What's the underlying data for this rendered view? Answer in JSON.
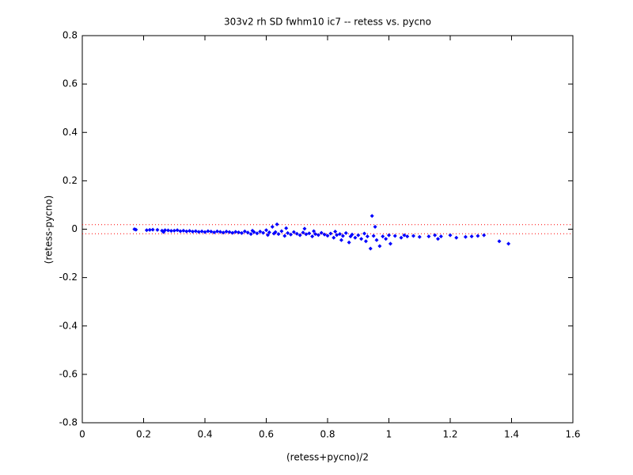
{
  "chart_data": {
    "type": "scatter",
    "title": "303v2 rh SD fwhm10 ic7 -- retess vs. pycno",
    "x_label": "(retess+pycno)/2",
    "y_label": "(retess-pycno)",
    "xlim": [
      0,
      1.6
    ],
    "xticks": [
      0,
      0.2,
      0.4,
      0.6,
      0.8,
      1,
      1.2,
      1.4,
      1.6
    ],
    "ylim": [
      -0.8,
      0.8
    ],
    "yticks": [
      -0.8,
      -0.6,
      -0.4,
      -0.2,
      0,
      0.2,
      0.4,
      0.6,
      0.8
    ],
    "grid": false,
    "reference_lines": [
      {
        "value": 0.019,
        "color": "#ff0000"
      },
      {
        "value": -0.019,
        "color": "#ff0000"
      }
    ],
    "series": [
      {
        "color": "#0000ff",
        "x": [
          0.17,
          0.175,
          0.21,
          0.22,
          0.23,
          0.245,
          0.26,
          0.265,
          0.27,
          0.28,
          0.29,
          0.3,
          0.31,
          0.32,
          0.33,
          0.34,
          0.35,
          0.36,
          0.37,
          0.38,
          0.39,
          0.4,
          0.41,
          0.42,
          0.43,
          0.44,
          0.45,
          0.46,
          0.47,
          0.48,
          0.49,
          0.5,
          0.51,
          0.52,
          0.53,
          0.54,
          0.55,
          0.555,
          0.56,
          0.57,
          0.58,
          0.59,
          0.6,
          0.605,
          0.61,
          0.62,
          0.625,
          0.63,
          0.635,
          0.64,
          0.65,
          0.66,
          0.665,
          0.67,
          0.68,
          0.69,
          0.7,
          0.71,
          0.72,
          0.725,
          0.73,
          0.74,
          0.75,
          0.755,
          0.76,
          0.77,
          0.78,
          0.79,
          0.8,
          0.81,
          0.82,
          0.825,
          0.83,
          0.84,
          0.845,
          0.85,
          0.86,
          0.87,
          0.875,
          0.88,
          0.89,
          0.9,
          0.91,
          0.92,
          0.925,
          0.93,
          0.94,
          0.945,
          0.95,
          0.955,
          0.96,
          0.97,
          0.98,
          0.99,
          1.0,
          1.005,
          1.02,
          1.04,
          1.05,
          1.06,
          1.08,
          1.1,
          1.13,
          1.15,
          1.16,
          1.17,
          1.2,
          1.22,
          1.25,
          1.27,
          1.29,
          1.31,
          1.36,
          1.39
        ],
        "values": [
          0.0,
          -0.002,
          -0.004,
          -0.003,
          -0.002,
          -0.003,
          -0.006,
          -0.012,
          -0.004,
          -0.005,
          -0.007,
          -0.006,
          -0.004,
          -0.008,
          -0.006,
          -0.009,
          -0.007,
          -0.01,
          -0.008,
          -0.011,
          -0.009,
          -0.012,
          -0.008,
          -0.01,
          -0.013,
          -0.009,
          -0.011,
          -0.014,
          -0.01,
          -0.012,
          -0.015,
          -0.011,
          -0.013,
          -0.016,
          -0.009,
          -0.014,
          -0.02,
          -0.006,
          -0.012,
          -0.017,
          -0.01,
          -0.015,
          -0.004,
          -0.024,
          -0.013,
          0.01,
          -0.018,
          -0.012,
          0.02,
          -0.02,
          -0.008,
          -0.028,
          0.004,
          -0.016,
          -0.022,
          -0.012,
          -0.019,
          -0.025,
          -0.014,
          0.002,
          -0.021,
          -0.017,
          -0.03,
          -0.008,
          -0.02,
          -0.024,
          -0.015,
          -0.022,
          -0.027,
          -0.018,
          -0.035,
          -0.01,
          -0.024,
          -0.02,
          -0.045,
          -0.028,
          -0.016,
          -0.055,
          -0.03,
          -0.022,
          -0.035,
          -0.025,
          -0.04,
          -0.018,
          -0.05,
          -0.03,
          -0.08,
          0.055,
          -0.028,
          0.01,
          -0.045,
          -0.07,
          -0.03,
          -0.04,
          -0.025,
          -0.06,
          -0.028,
          -0.035,
          -0.025,
          -0.03,
          -0.028,
          -0.032,
          -0.03,
          -0.025,
          -0.04,
          -0.03,
          -0.025,
          -0.035,
          -0.032,
          -0.03,
          -0.028,
          -0.025,
          -0.05,
          -0.06
        ]
      }
    ]
  }
}
